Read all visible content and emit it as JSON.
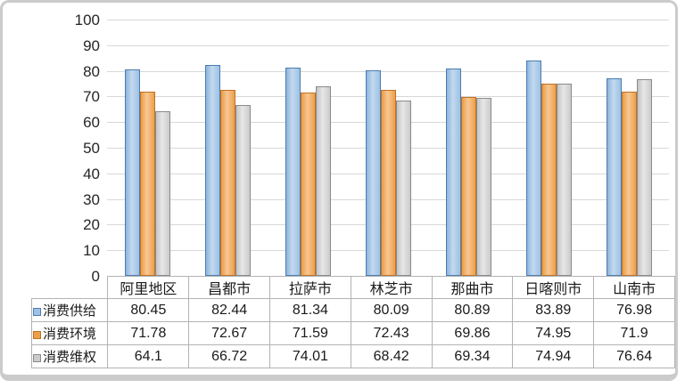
{
  "chart_data": {
    "type": "bar",
    "title": "",
    "xlabel": "",
    "ylabel": "",
    "ylim": [
      0,
      100
    ],
    "yticks": [
      0,
      10,
      20,
      30,
      40,
      50,
      60,
      70,
      80,
      90,
      100
    ],
    "grid": true,
    "legend_position": "table-left",
    "categories": [
      "阿里地区",
      "昌都市",
      "拉萨市",
      "林芝市",
      "那曲市",
      "日喀则市",
      "山南市"
    ],
    "series": [
      {
        "name": "消费供给",
        "fill_color": "#9cc2e4",
        "border_color": "#4e7cb0",
        "values": [
          80.45,
          82.44,
          81.34,
          80.09,
          80.89,
          83.89,
          76.98
        ]
      },
      {
        "name": "消费环境",
        "fill_color": "#ee9f47",
        "border_color": "#bf7226",
        "values": [
          71.78,
          72.67,
          71.59,
          72.43,
          69.86,
          74.95,
          71.9
        ]
      },
      {
        "name": "消费维权",
        "fill_color": "#cbcbcb",
        "border_color": "#8b8b8b",
        "values": [
          64.1,
          66.72,
          74.01,
          68.42,
          69.34,
          74.94,
          76.64
        ]
      }
    ]
  }
}
